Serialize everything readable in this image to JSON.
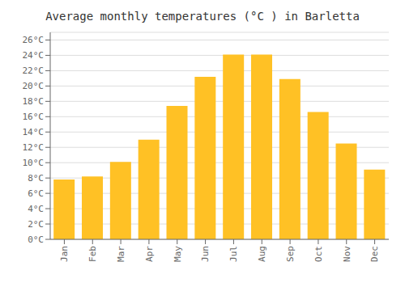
{
  "chart_data": {
    "type": "bar",
    "title": "Average monthly temperatures (°C ) in Barletta",
    "categories": [
      "Jan",
      "Feb",
      "Mar",
      "Apr",
      "May",
      "Jun",
      "Jul",
      "Aug",
      "Sep",
      "Oct",
      "Nov",
      "Dec"
    ],
    "values": [
      7.8,
      8.2,
      10.1,
      13.0,
      17.4,
      21.2,
      24.1,
      24.1,
      20.9,
      16.6,
      12.5,
      9.1
    ],
    "color": "#FFC125",
    "ylim": [
      0,
      27
    ],
    "yticks": [
      {
        "value": 0,
        "label": "0°C"
      },
      {
        "value": 2,
        "label": "2°C"
      },
      {
        "value": 4,
        "label": "4°C"
      },
      {
        "value": 6,
        "label": "6°C"
      },
      {
        "value": 8,
        "label": "8°C"
      },
      {
        "value": 10,
        "label": "10°C"
      },
      {
        "value": 12,
        "label": "12°C"
      },
      {
        "value": 14,
        "label": "14°C"
      },
      {
        "value": 16,
        "label": "16°C"
      },
      {
        "value": 18,
        "label": "18°C"
      },
      {
        "value": 20,
        "label": "20°C"
      },
      {
        "value": 22,
        "label": "22°C"
      },
      {
        "value": 24,
        "label": "24°C"
      },
      {
        "value": 26,
        "label": "26°C"
      }
    ],
    "grid": true
  }
}
